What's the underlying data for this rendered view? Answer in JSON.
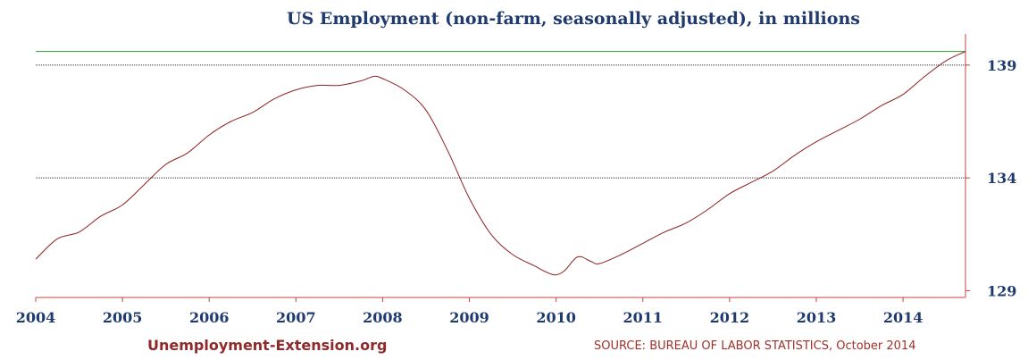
{
  "chart_data": {
    "type": "line",
    "title": "US Employment (non-farm, seasonally adjusted), in millions",
    "xlabel": "",
    "ylabel": "",
    "x_ticks": [
      "2004",
      "2005",
      "2006",
      "2007",
      "2008",
      "2009",
      "2010",
      "2011",
      "2012",
      "2013",
      "2014"
    ],
    "y_ticks": [
      "129",
      "134",
      "139"
    ],
    "xlim": [
      2004.0,
      2014.72
    ],
    "ylim": [
      128.7,
      140.3
    ],
    "reference_lines": [
      {
        "label": "139",
        "value": 139.0,
        "style": "dotted"
      },
      {
        "label": "134",
        "value": 134.0,
        "style": "dotted"
      },
      {
        "label": "max",
        "value": 139.6,
        "style": "solid",
        "color": "#2e9e2e"
      }
    ],
    "series": [
      {
        "color": "#8b2020",
        "x": [
          2004.0,
          2004.25,
          2004.5,
          2004.75,
          2005.0,
          2005.25,
          2005.5,
          2005.75,
          2006.0,
          2006.25,
          2006.5,
          2006.75,
          2007.0,
          2007.25,
          2007.5,
          2007.75,
          2007.9,
          2008.0,
          2008.25,
          2008.5,
          2008.75,
          2009.0,
          2009.25,
          2009.5,
          2009.75,
          2009.9,
          2010.0,
          2010.1,
          2010.25,
          2010.4,
          2010.5,
          2010.75,
          2011.0,
          2011.25,
          2011.5,
          2011.75,
          2012.0,
          2012.25,
          2012.5,
          2012.75,
          2013.0,
          2013.25,
          2013.5,
          2013.75,
          2014.0,
          2014.25,
          2014.5,
          2014.72
        ],
        "values": [
          130.4,
          131.3,
          131.6,
          132.3,
          132.8,
          133.7,
          134.6,
          135.1,
          135.9,
          136.5,
          136.9,
          137.5,
          137.9,
          138.1,
          138.1,
          138.3,
          138.5,
          138.4,
          137.9,
          137.0,
          135.2,
          133.1,
          131.5,
          130.6,
          130.1,
          129.8,
          129.7,
          129.9,
          130.5,
          130.3,
          130.2,
          130.6,
          131.1,
          131.6,
          132.0,
          132.6,
          133.3,
          133.8,
          134.3,
          135.0,
          135.6,
          136.1,
          136.6,
          137.2,
          137.7,
          138.5,
          139.2,
          139.6
        ]
      }
    ]
  },
  "footer": {
    "brand": "Unemployment-Extension.org",
    "source": "SOURCE: BUREAU OF LABOR STATISTICS, October 2014"
  },
  "colors": {
    "line": "#8b2020",
    "axis": "#c44444",
    "max_line": "#2e9e2e",
    "text": "#1f3a6e"
  }
}
